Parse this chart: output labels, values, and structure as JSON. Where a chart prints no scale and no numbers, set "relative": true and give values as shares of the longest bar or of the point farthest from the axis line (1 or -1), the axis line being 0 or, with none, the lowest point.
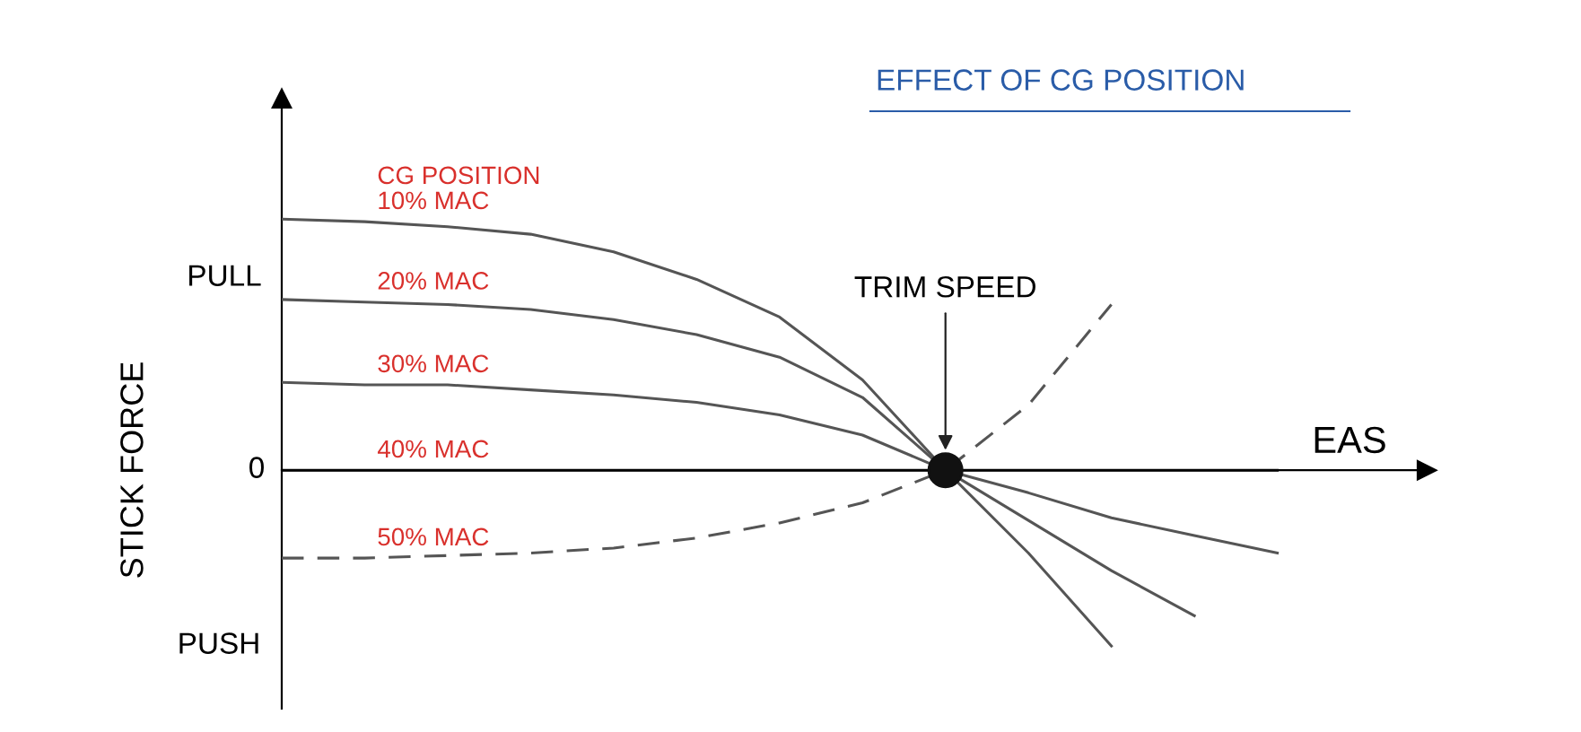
{
  "chart_data": {
    "type": "line",
    "relative": true,
    "title": "EFFECT OF CG POSITION",
    "legend_title": "CG POSITION",
    "ylabel": "STICK FORCE",
    "xlabel": "EAS",
    "annotations": [
      "PULL",
      "0",
      "PUSH",
      "TRIM SPEED"
    ],
    "categories": [
      null,
      null,
      null,
      null,
      null,
      null,
      null,
      null,
      null,
      null,
      null,
      null,
      null
    ],
    "series": [
      {
        "name": "10% MAC",
        "color": "#555555",
        "line_style": "solid",
        "values": [
          1.0,
          0.99,
          0.97,
          0.94,
          0.87,
          0.76,
          0.61,
          0.36,
          0,
          -0.33,
          -0.7,
          null,
          null
        ]
      },
      {
        "name": "20% MAC",
        "color": "#555555",
        "line_style": "solid",
        "values": [
          0.68,
          0.67,
          0.66,
          0.64,
          0.6,
          0.54,
          0.45,
          0.29,
          0,
          -0.2,
          -0.4,
          -0.58,
          null
        ]
      },
      {
        "name": "30% MAC",
        "color": "#555555",
        "line_style": "solid",
        "values": [
          0.35,
          0.34,
          0.34,
          0.32,
          0.3,
          0.27,
          0.22,
          0.14,
          0,
          -0.09,
          -0.19,
          -0.26,
          -0.33
        ]
      },
      {
        "name": "40% MAC",
        "color": "#000000",
        "line_style": "solid",
        "values": [
          0,
          0,
          0,
          0,
          0,
          0,
          0,
          0,
          0,
          0,
          0,
          0,
          0
        ]
      },
      {
        "name": "50% MAC",
        "color": "#555555",
        "line_style": "dashed",
        "values": [
          -0.35,
          -0.35,
          -0.34,
          -0.33,
          -0.31,
          -0.27,
          -0.21,
          -0.13,
          0,
          0.26,
          0.66,
          null,
          null
        ]
      }
    ],
    "legend": false
  }
}
